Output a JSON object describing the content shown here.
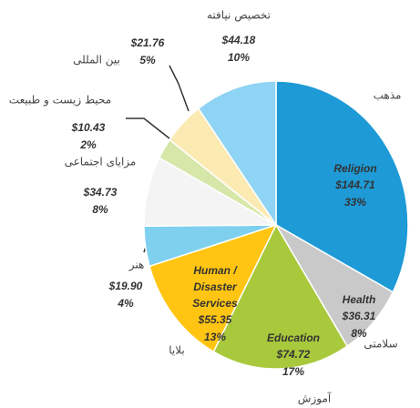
{
  "chart_data": {
    "type": "pie",
    "slices": [
      {
        "name": "مذهب",
        "label_lines": [
          "Religion"
        ],
        "value": 144.71,
        "value_label": "$144.71",
        "percent": 33,
        "percent_label": "33%",
        "color": "#1e9ad6"
      },
      {
        "name": "سلامتی",
        "label_lines": [
          "Health"
        ],
        "value": 36.31,
        "value_label": "$36.31",
        "percent": 8,
        "percent_label": "8%",
        "color": "#c9c9c9"
      },
      {
        "name": "آموزش",
        "label_lines": [
          "Education"
        ],
        "value": 74.72,
        "value_label": "$74.72",
        "percent": 17,
        "percent_label": "17%",
        "color": "#a9c93c"
      },
      {
        "name": "بلایا",
        "label_lines": [
          "Human /",
          "Disaster",
          "Services"
        ],
        "value": 55.35,
        "value_label": "$55.35",
        "percent": 13,
        "percent_label": "13%",
        "color": "#ffc512"
      },
      {
        "name": "هنر",
        "value": 19.9,
        "value_label": "$19.90",
        "percent": 4,
        "percent_label": "4%",
        "color": "#7fd0ef"
      },
      {
        "name": "مزایای اجتماعی",
        "value": 34.73,
        "value_label": "$34.73",
        "percent": 8,
        "percent_label": "8%",
        "color": "#f4f4f4"
      },
      {
        "name": "محیط زیست و طبیعت",
        "value": 10.43,
        "value_label": "$10.43",
        "percent": 2,
        "percent_label": "2%",
        "color": "#d7e7aa"
      },
      {
        "name": "بین المللی",
        "value": 21.76,
        "value_label": "$21.76",
        "percent": 5,
        "percent_label": "5%",
        "color": "#fbeab2"
      },
      {
        "name": "تخصیص نیافته",
        "value": 44.18,
        "value_label": "$44.18",
        "percent": 10,
        "percent_label": "10%",
        "color": "#8fd4f4"
      }
    ]
  }
}
